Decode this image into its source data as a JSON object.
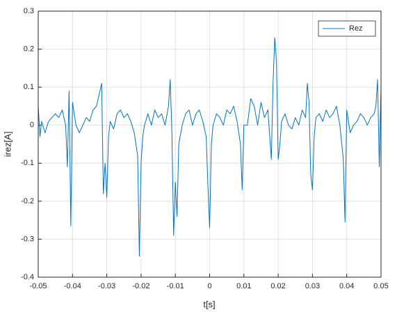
{
  "chart_data": {
    "type": "line",
    "xlabel": "t[s]",
    "ylabel": "irez[A]",
    "xlim": [
      -0.05,
      0.05
    ],
    "ylim": [
      -0.4,
      0.3
    ],
    "xticks": [
      -0.05,
      -0.04,
      -0.03,
      -0.02,
      -0.01,
      0,
      0.01,
      0.02,
      0.03,
      0.04,
      0.05
    ],
    "yticks": [
      -0.4,
      -0.3,
      -0.2,
      -0.1,
      0,
      0.1,
      0.2,
      0.3
    ],
    "grid": true,
    "legend": "upper right",
    "x": [
      -0.05,
      -0.0495,
      -0.049,
      -0.048,
      -0.047,
      -0.046,
      -0.045,
      -0.044,
      -0.043,
      -0.042,
      -0.0415,
      -0.041,
      -0.0405,
      -0.04,
      -0.039,
      -0.038,
      -0.037,
      -0.036,
      -0.035,
      -0.034,
      -0.033,
      -0.032,
      -0.0315,
      -0.031,
      -0.0305,
      -0.03,
      -0.0295,
      -0.029,
      -0.028,
      -0.027,
      -0.026,
      -0.025,
      -0.024,
      -0.023,
      -0.022,
      -0.021,
      -0.0205,
      -0.02,
      -0.0195,
      -0.019,
      -0.018,
      -0.017,
      -0.016,
      -0.015,
      -0.014,
      -0.013,
      -0.012,
      -0.0115,
      -0.011,
      -0.0105,
      -0.01,
      -0.0095,
      -0.009,
      -0.008,
      -0.007,
      -0.006,
      -0.005,
      -0.004,
      -0.003,
      -0.002,
      -0.001,
      -0.0005,
      0,
      0.0005,
      0.001,
      0.002,
      0.003,
      0.004,
      0.005,
      0.006,
      0.007,
      0.008,
      0.009,
      0.0095,
      0.01,
      0.011,
      0.012,
      0.013,
      0.014,
      0.015,
      0.016,
      0.017,
      0.018,
      0.0185,
      0.019,
      0.0195,
      0.02,
      0.0205,
      0.021,
      0.022,
      0.023,
      0.024,
      0.025,
      0.026,
      0.027,
      0.028,
      0.0285,
      0.029,
      0.0295,
      0.03,
      0.0305,
      0.031,
      0.032,
      0.033,
      0.034,
      0.035,
      0.036,
      0.037,
      0.038,
      0.039,
      0.0395,
      0.04,
      0.041,
      0.042,
      0.043,
      0.044,
      0.045,
      0.046,
      0.047,
      0.048,
      0.0485,
      0.049,
      0.0495,
      0.05
    ],
    "series": [
      {
        "name": "Rez",
        "color": "#0072bd",
        "values": [
          0.05,
          -0.03,
          0.01,
          -0.02,
          0.01,
          0.02,
          0.03,
          0.02,
          0.04,
          0.0,
          -0.11,
          0.09,
          -0.265,
          0.06,
          0.0,
          -0.02,
          0.0,
          0.02,
          0.01,
          0.04,
          0.05,
          0.09,
          0.11,
          -0.18,
          -0.1,
          -0.19,
          -0.03,
          0.01,
          -0.01,
          0.03,
          0.04,
          0.02,
          0.03,
          0.01,
          -0.02,
          -0.08,
          -0.345,
          -0.1,
          -0.03,
          0.0,
          0.03,
          0.0,
          0.04,
          0.02,
          0.03,
          0.0,
          0.05,
          0.12,
          -0.02,
          -0.29,
          -0.15,
          -0.24,
          -0.05,
          0.0,
          0.03,
          0.04,
          0.0,
          0.03,
          0.04,
          0.01,
          -0.03,
          -0.16,
          -0.27,
          -0.05,
          0.0,
          0.03,
          0.02,
          0.0,
          0.04,
          0.03,
          0.05,
          0.01,
          -0.05,
          -0.17,
          0.0,
          0.0,
          0.07,
          0.05,
          0.0,
          0.06,
          0.02,
          0.04,
          -0.09,
          0.11,
          0.23,
          0.17,
          -0.09,
          -0.05,
          0.01,
          0.03,
          0.0,
          -0.01,
          0.02,
          0.0,
          0.04,
          0.02,
          0.11,
          0.06,
          -0.13,
          -0.17,
          -0.03,
          0.02,
          0.03,
          0.01,
          0.04,
          0.02,
          0.03,
          0.05,
          0.0,
          -0.09,
          -0.255,
          0.04,
          -0.02,
          0.0,
          0.01,
          0.03,
          0.02,
          0.0,
          0.02,
          0.03,
          0.05,
          0.12,
          -0.11,
          0.1
        ]
      }
    ]
  }
}
